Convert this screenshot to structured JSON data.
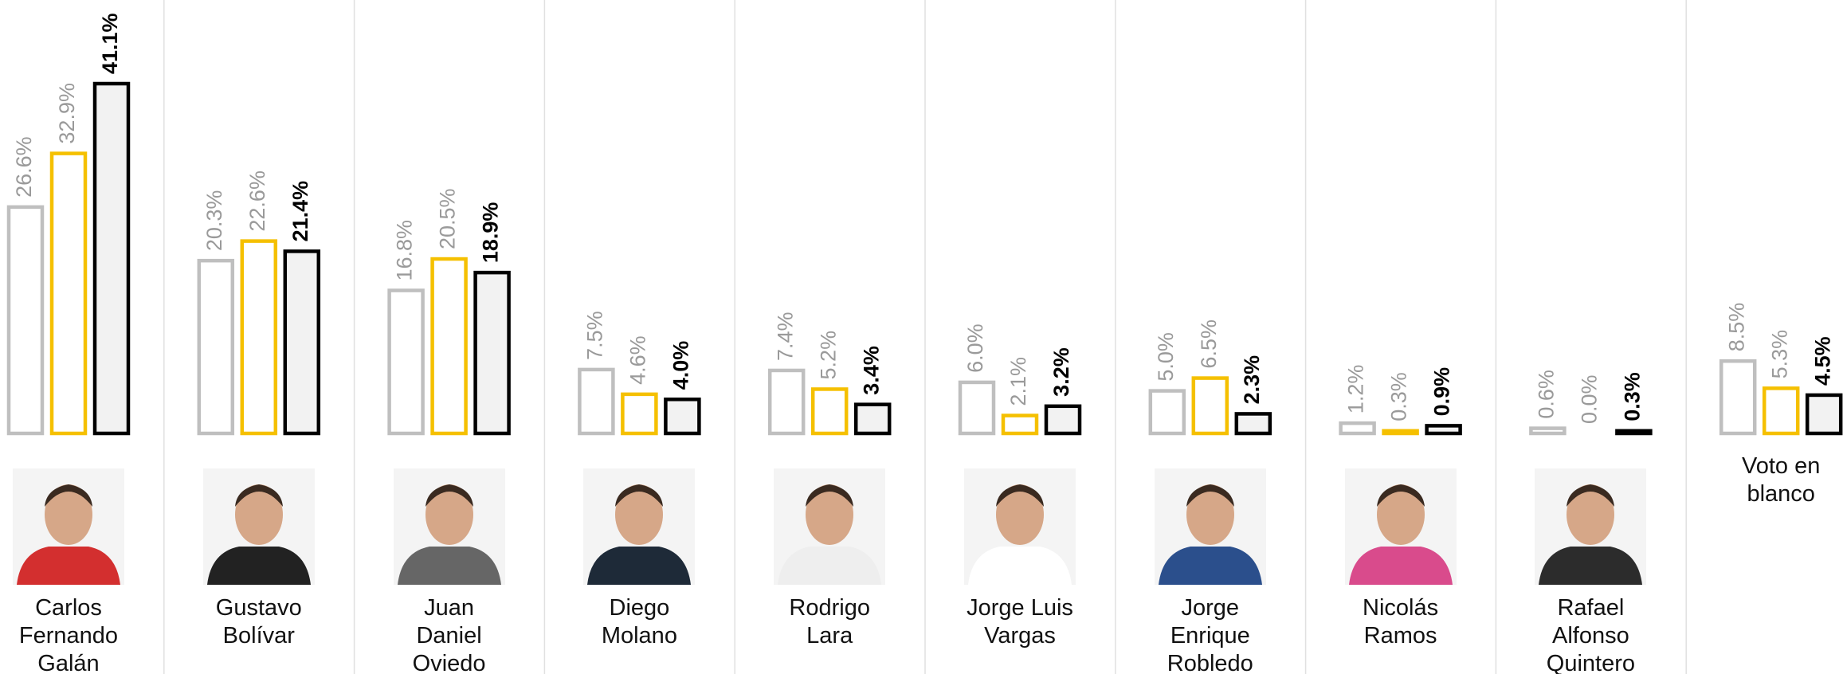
{
  "chart_data": {
    "type": "bar",
    "categories": [
      "Carlos Fernando Galán",
      "Gustavo Bolívar",
      "Juan Daniel Oviedo",
      "Diego Molano",
      "Rodrigo Lara",
      "Jorge Luis Vargas",
      "Jorge Enrique Robledo",
      "Nicolás Ramos",
      "Rafael Alfonso Quintero",
      "Voto en blanco"
    ],
    "series": [
      {
        "color": "#bfbfbf",
        "values": [
          26.6,
          20.3,
          16.8,
          7.5,
          7.4,
          6.0,
          5.0,
          1.2,
          0.6,
          8.5
        ],
        "value_labels": [
          "26.6%",
          "20.3%",
          "16.8%",
          "7.5%",
          "7.4%",
          "6.0%",
          "5.0%",
          "1.2%",
          "0.6%",
          "8.5%"
        ]
      },
      {
        "color": "#f5c000",
        "values": [
          32.9,
          22.6,
          20.5,
          4.6,
          5.2,
          2.1,
          6.5,
          0.3,
          0.0,
          5.3
        ],
        "value_labels": [
          "32.9%",
          "22.6%",
          "20.5%",
          "4.6%",
          "5.2%",
          "2.1%",
          "6.5%",
          "0.3%",
          "0.0%",
          "5.3%"
        ]
      },
      {
        "color": "#000000",
        "values": [
          41.1,
          21.4,
          18.9,
          4.0,
          3.4,
          3.2,
          2.3,
          0.9,
          0.3,
          4.5
        ],
        "value_labels": [
          "41.1%",
          "21.4%",
          "18.9%",
          "4.0%",
          "3.4%",
          "3.2%",
          "2.3%",
          "0.9%",
          "0.3%",
          "4.5%"
        ]
      }
    ]
  }
}
